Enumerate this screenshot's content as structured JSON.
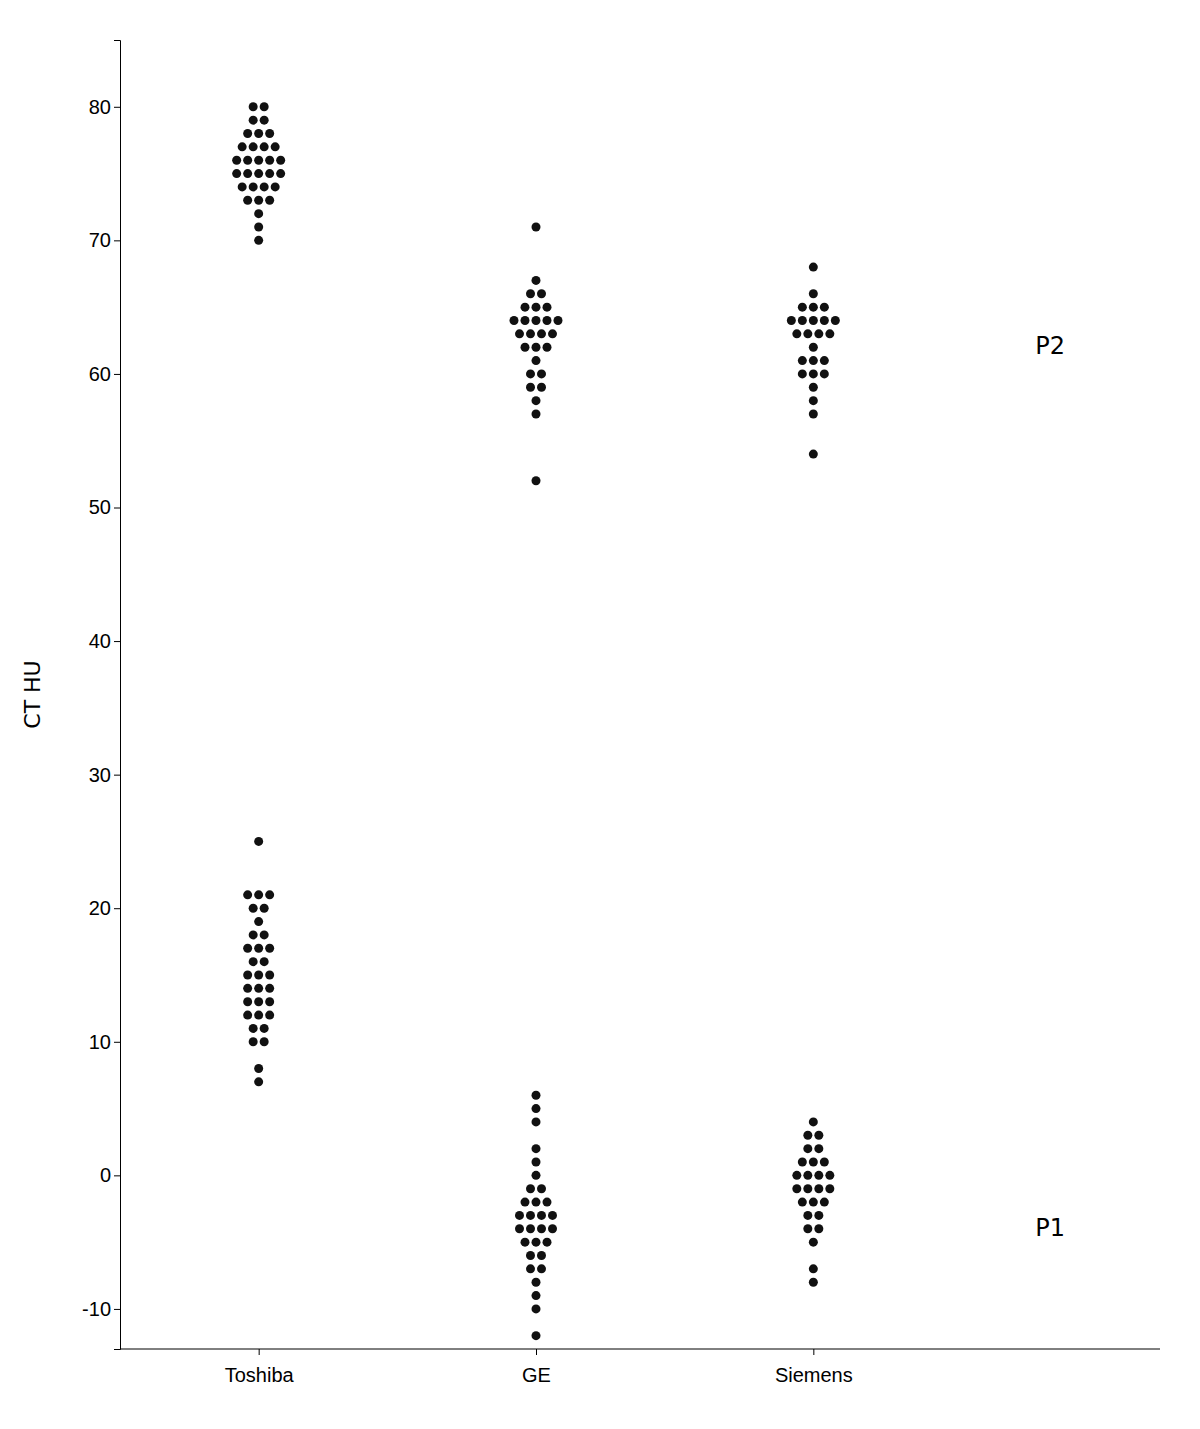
{
  "chart_data": {
    "type": "scatter",
    "ylabel": "CT HU",
    "categories": [
      "Toshiba",
      "GE",
      "Siemens"
    ],
    "color": "#111111",
    "ylim": [
      -13,
      85
    ],
    "yticks": [
      -10,
      0,
      10,
      20,
      30,
      40,
      50,
      60,
      70,
      80
    ],
    "grid": false,
    "series": [
      {
        "values": [
          [
            80,
            80,
            79,
            79,
            78,
            78,
            78,
            77,
            77,
            77,
            77,
            76,
            76,
            76,
            76,
            76,
            75,
            75,
            75,
            75,
            75,
            74,
            74,
            74,
            74,
            73,
            73,
            73,
            72,
            71,
            70
          ],
          [
            71,
            67,
            66,
            66,
            65,
            65,
            65,
            64,
            64,
            64,
            64,
            64,
            63,
            63,
            63,
            63,
            62,
            62,
            62,
            61,
            60,
            60,
            59,
            59,
            58,
            57,
            52
          ],
          [
            68,
            66,
            65,
            65,
            65,
            64,
            64,
            64,
            64,
            64,
            63,
            63,
            63,
            63,
            62,
            61,
            61,
            61,
            60,
            60,
            60,
            59,
            58,
            57,
            54
          ]
        ]
      },
      {
        "values": [
          [
            25,
            21,
            21,
            21,
            20,
            20,
            19,
            18,
            18,
            17,
            17,
            17,
            16,
            16,
            15,
            15,
            15,
            14,
            14,
            14,
            13,
            13,
            13,
            12,
            12,
            12,
            11,
            11,
            10,
            10,
            8,
            7
          ],
          [
            6,
            5,
            4,
            2,
            1,
            0,
            -1,
            -1,
            -2,
            -2,
            -2,
            -3,
            -3,
            -3,
            -3,
            -4,
            -4,
            -4,
            -4,
            -5,
            -5,
            -5,
            -6,
            -6,
            -7,
            -7,
            -8,
            -9,
            -10,
            -12
          ],
          [
            4,
            3,
            3,
            2,
            2,
            1,
            1,
            1,
            0,
            0,
            0,
            0,
            -1,
            -1,
            -1,
            -1,
            -2,
            -2,
            -2,
            -3,
            -3,
            -4,
            -4,
            -5,
            -7,
            -8
          ]
        ]
      }
    ],
    "annotations": [
      {
        "text": "P2",
        "y": 62
      },
      {
        "text": "P1",
        "y": -4
      }
    ]
  }
}
